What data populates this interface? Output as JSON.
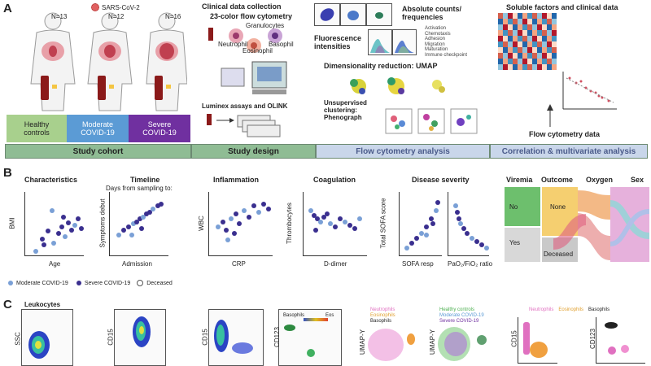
{
  "panelA": {
    "letter": "A",
    "virus_label": "SARS-CoV-2",
    "n_labels": [
      "N=13",
      "N=12",
      "N=16"
    ],
    "cohorts": [
      {
        "label": "Healthy\ncontrols",
        "color": "#a8d08d"
      },
      {
        "label": "Moderate\nCOVID-19",
        "color": "#5b9bd5"
      },
      {
        "label": "Severe\nCOVID-19",
        "color": "#7030a0"
      }
    ],
    "clinical_title": "Clinical data collection",
    "flow_title": "23-color flow cytometry",
    "flow_subtitle": "Granulocytes",
    "cell_labels": [
      "Neutrophil",
      "Eosinophil",
      "Basophil"
    ],
    "luminex": "Luminex assays and OLINK",
    "abs_counts": "Absolute counts/\nfrequencies",
    "fluorescence": "Fluorescence\nintensities",
    "umap_title": "Dimensionality reduction: UMAP",
    "unsupervised": "Unsupervised\nclustering:\nPhenograph",
    "soluble": "Soluble factors and clinical data",
    "flow_data": "Flow cytometry data",
    "activation_list": [
      "Activation",
      "Chemotaxis",
      "Adhesion",
      "Migration",
      "Maturation",
      "Immune checkpoint"
    ],
    "bands": [
      {
        "label": "Study cohort",
        "color": "#8fbc94"
      },
      {
        "label": "Study design",
        "color": "#8fbc94"
      },
      {
        "label": "Flow cytometry analysis",
        "color": "#c9d6ea"
      },
      {
        "label": "Correlation & multivariate analysis",
        "color": "#c9d6ea"
      }
    ]
  },
  "panelB": {
    "letter": "B",
    "titles": {
      "characteristics": "Characteristics",
      "timeline": "Timeline",
      "timeline_sub": "Days from sampling to:",
      "inflammation": "Inflammation",
      "coagulation": "Coagulation",
      "severity": "Disease severity",
      "viremia": "Viremia",
      "outcome": "Outcome",
      "oxygen": "Oxygen",
      "sex": "Sex"
    },
    "axes": {
      "bmi": "BMI",
      "age": "Age",
      "symptoms": "Symptoms debut",
      "admission": "Admission",
      "wbc": "WBC",
      "crp": "CRP",
      "thrombocytes": "Thrombocytes",
      "ddimer": "D-dimer",
      "sofa_total": "Total SOFA score",
      "sofa_resp": "SOFA resp",
      "pao2": "PaO₂/FiO₂ ratio"
    },
    "sankey_labels": [
      "No",
      "Yes",
      "None",
      "Deceased"
    ],
    "legend": [
      "Moderate COVID-19",
      "Severe COVID-19",
      "Deceased"
    ]
  },
  "panelC": {
    "letter": "C",
    "leukocytes": "Leukocytes",
    "axis_labels": [
      "SSC",
      "CD15",
      "CD15",
      "CD123",
      "UMAP-Y",
      "UMAP-Y",
      "CD15",
      "CD123"
    ],
    "gate_labels": [
      "Basophils",
      "Eos"
    ],
    "legend1": [
      "Neutrophils",
      "Eosinophils",
      "Basophils"
    ],
    "legend2": [
      "Healthy controls",
      "Moderate COVID-19",
      "Severe COVID-19"
    ],
    "legend3": [
      "Neutrophils",
      "Eosinophils",
      "Basophils"
    ]
  },
  "colors": {
    "healthy": "#a8d08d",
    "moderate": "#5b9bd5",
    "severe": "#7030a0",
    "mod_dot": "#7aa0d6",
    "sev_dot": "#3a2f8f"
  }
}
